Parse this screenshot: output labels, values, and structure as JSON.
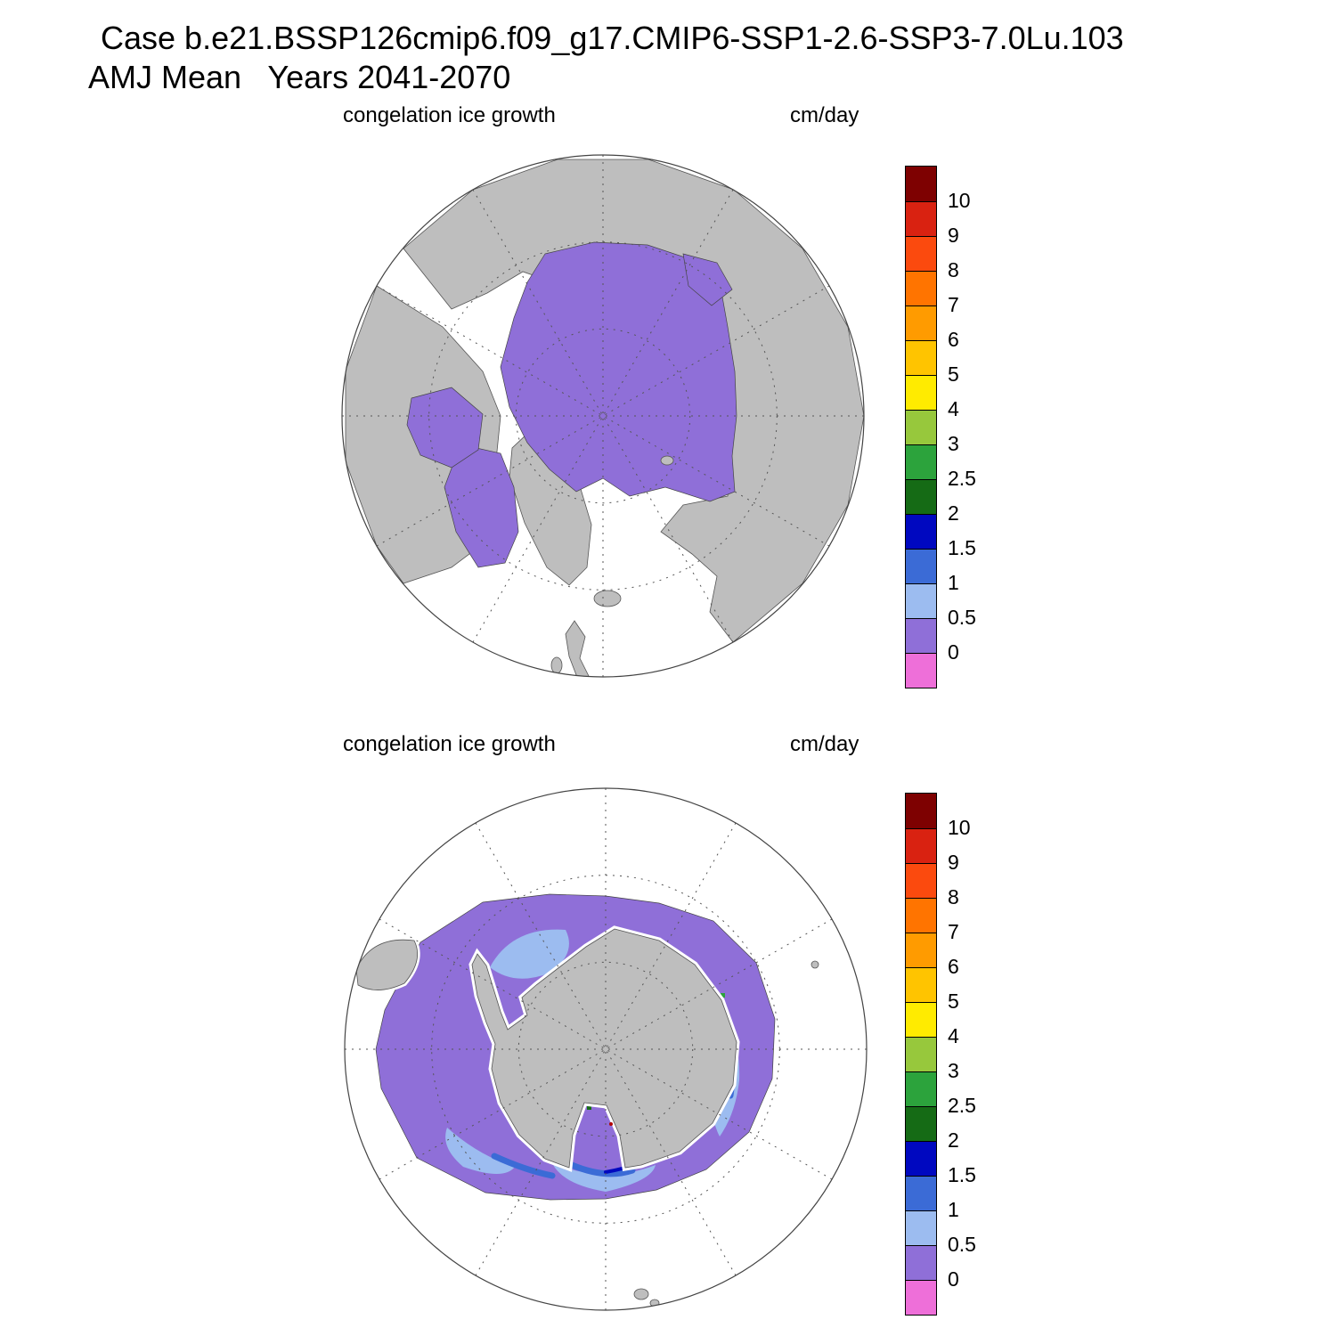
{
  "header": {
    "title_line1": "Case b.e21.BSSP126cmip6.f09_g17.CMIP6-SSP1-2.6-SSP3-7.0Lu.103",
    "title_line2": "AMJ Mean   Years 2041-2070"
  },
  "panels": [
    {
      "variable_label": "congelation ice growth",
      "units_label": "cm/day",
      "hemisphere": "Northern Hemisphere polar stereographic map"
    },
    {
      "variable_label": "congelation ice growth",
      "units_label": "cm/day",
      "hemisphere": "Southern Hemisphere polar stereographic map"
    }
  ],
  "colorbar": {
    "tick_labels": [
      "10",
      "9",
      "8",
      "7",
      "6",
      "5",
      "4",
      "3",
      "2.5",
      "2",
      "1.5",
      "1",
      "0.5",
      "0"
    ],
    "colors_top_to_bottom": [
      "#7e0101",
      "#d92211",
      "#fb4a0e",
      "#ff7400",
      "#ff9b00",
      "#ffc400",
      "#ffeb00",
      "#97c83c",
      "#2ca33c",
      "#156b15",
      "#0008c0",
      "#3b6bd6",
      "#9cbcf0",
      "#8f6fd8",
      "#ee6fd9"
    ]
  },
  "map_colors": {
    "land": "#bebebe",
    "coastline": "#555555",
    "ocean": "#ffffff",
    "ice0": "#8f6fd8",
    "ice05": "#9cbcf0",
    "ice1": "#3b6bd6",
    "ice15": "#0008c0",
    "ice2": "#156b15",
    "ice25": "#2ca33c",
    "graticule": "#555555"
  },
  "chart_data": {
    "type": "heatmap",
    "title": "congelation ice growth",
    "units": "cm/day",
    "case_label": "Case b.e21.BSSP126cmip6.f09_g17.CMIP6-SSP1-2.6-SSP3-7.0Lu.103",
    "time_mean": "AMJ Mean, Years 2041-2070",
    "contour_levels": [
      0,
      0.5,
      1,
      1.5,
      2,
      2.5,
      3,
      4,
      5,
      6,
      7,
      8,
      9,
      10
    ],
    "level_colors_low_to_high": [
      "#ee6fd9",
      "#8f6fd8",
      "#9cbcf0",
      "#3b6bd6",
      "#0008c0",
      "#156b15",
      "#2ca33c",
      "#97c83c",
      "#ffeb00",
      "#ffc400",
      "#ff9b00",
      "#ff7400",
      "#fb4a0e",
      "#d92211",
      "#7e0101"
    ],
    "legend_position": "right vertical colorbar, labels at level boundaries",
    "panels": [
      {
        "hemisphere": "Northern",
        "projection": "north polar stereographic",
        "observed_values": "Congelation ice growth of 0-0.5 cm/day (purple) covers the central Arctic Ocean, Canadian Arctic Archipelago, Baffin Bay, Hudson Bay/Foxe Basin and the Siberian shelf seas; surrounding land is gray, open ocean white."
      },
      {
        "hemisphere": "Southern",
        "projection": "south polar stereographic",
        "observed_values": "A ring of congelation ice growth surrounds Antarctica: mostly 0-0.5 cm/day (purple) offshore, 0.5-1 cm/day (light blue) bands nearer the coast, thin 1-1.5 cm/day (blue) coastal arcs and isolated 1.5-3 cm/day patches at the coast."
      }
    ]
  }
}
